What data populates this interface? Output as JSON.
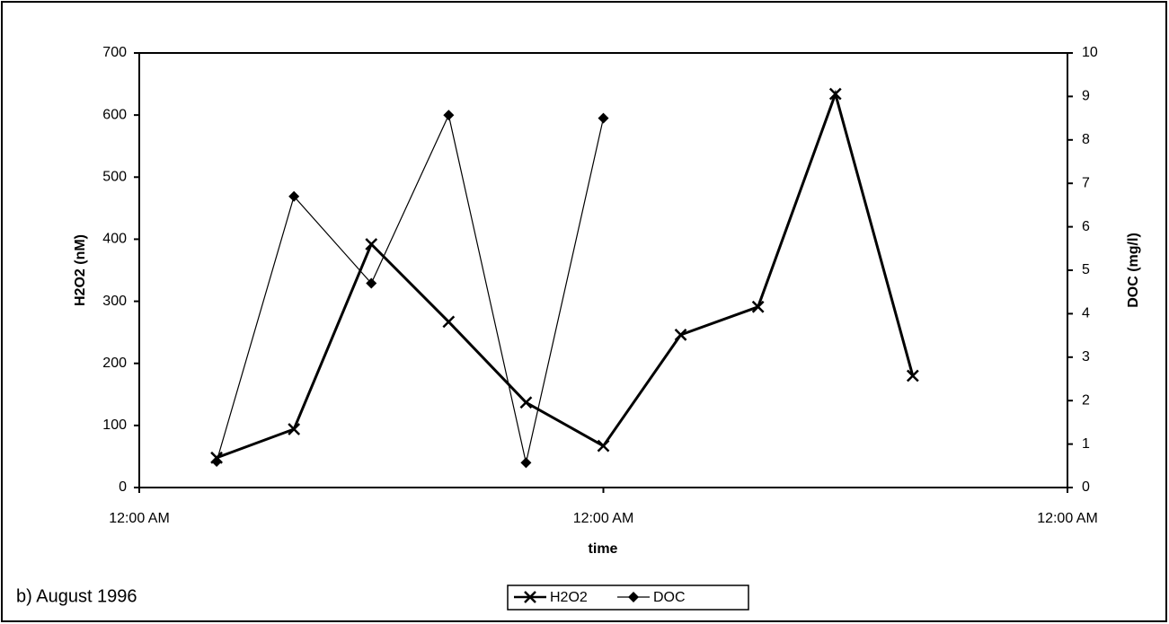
{
  "chart_data": {
    "type": "line",
    "x_label": "time",
    "y_label": "H2O2 (nM)",
    "y2_label": "DOC (mg/l)",
    "annotation": "b) August 1996",
    "x": [
      4,
      8,
      12,
      16,
      20,
      24,
      28,
      32,
      36,
      40
    ],
    "series": [
      {
        "name": "H2O2",
        "color": "#000000",
        "marker": "x",
        "values": [
          48,
          94,
          392,
          267,
          137,
          67,
          246,
          291,
          634,
          180
        ]
      },
      {
        "name": "DOC",
        "color": "#000000",
        "marker": "diamond",
        "axis": "y2",
        "values": [
          0.6,
          6.7,
          4.7,
          8.57,
          0.57,
          8.5,
          null,
          null,
          null,
          null
        ]
      }
    ],
    "xlim": [
      0,
      48
    ],
    "xticks": [
      {
        "value": 0,
        "label": "12:00 AM"
      },
      {
        "value": 24,
        "label": "12:00 AM"
      },
      {
        "value": 48,
        "label": "12:00 AM"
      }
    ],
    "ylim": [
      0,
      700
    ],
    "yticks": [
      0,
      100,
      200,
      300,
      400,
      500,
      600,
      700
    ],
    "y2lim": [
      0,
      10
    ],
    "y2ticks": [
      0,
      1,
      2,
      3,
      4,
      5,
      6,
      7,
      8,
      9,
      10
    ],
    "grid": false,
    "legend": "bottom"
  }
}
